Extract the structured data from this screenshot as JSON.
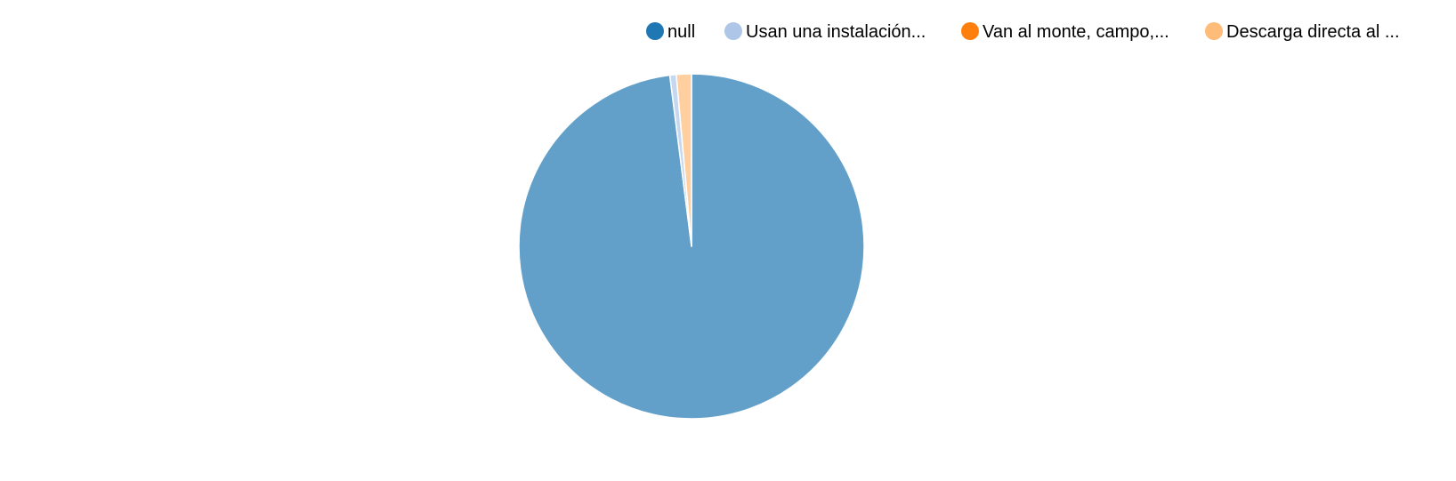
{
  "chart_data": {
    "type": "pie",
    "title": "",
    "legend_position": "top-right",
    "slices": [
      {
        "label": "null",
        "value": 97.6,
        "color": "#1f77b4"
      },
      {
        "label": "Usan una instalación...",
        "value": 0.6,
        "color": "#aec7e8"
      },
      {
        "label": "Van al monte, campo,...",
        "value": 0.0,
        "color": "#ff7f0e"
      },
      {
        "label": "Descarga directa al ...",
        "value": 1.4,
        "color": "#ffbb78"
      }
    ],
    "slice_opacity": 0.7
  }
}
